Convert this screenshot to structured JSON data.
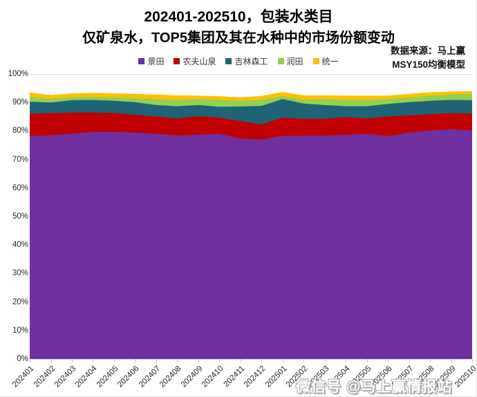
{
  "title": {
    "line1": "202401-202510，包装水类目",
    "line2": "仅矿泉水，TOP5集团及其在水种中的市场份额变动"
  },
  "source": {
    "line1": "数据来源：马上赢",
    "line2": "MSY150均衡模型"
  },
  "watermark": "微信号 @马上赢情报站",
  "chart_data": {
    "type": "area",
    "stacked": true,
    "unit": "%",
    "title": "202401-202510，包装水类目 仅矿泉水，TOP5集团及其在水种中的市场份额变动",
    "xlabel": "",
    "ylabel": "",
    "ylim": [
      0,
      100
    ],
    "yticks": [
      "0%",
      "10%",
      "20%",
      "30%",
      "40%",
      "50%",
      "60%",
      "70%",
      "80%",
      "90%",
      "100%"
    ],
    "grid": true,
    "legend_position": "top-center",
    "categories": [
      "202401",
      "202402",
      "202403",
      "202404",
      "202405",
      "202406",
      "202407",
      "202408",
      "202409",
      "202410",
      "202411",
      "202412",
      "202501",
      "202502",
      "202503",
      "202504",
      "202505",
      "202506",
      "202507",
      "202508",
      "202509",
      "202510"
    ],
    "series": [
      {
        "name": "景田",
        "color": "#7030A0",
        "values": [
          78.2,
          78.5,
          79.0,
          79.6,
          79.7,
          79.4,
          79.0,
          78.4,
          78.7,
          79.0,
          77.4,
          77.0,
          78.3,
          78.3,
          78.4,
          78.6,
          79.0,
          78.2,
          79.4,
          80.2,
          80.6,
          80.2
        ]
      },
      {
        "name": "农夫山泉",
        "color": "#C00000",
        "values": [
          7.9,
          7.8,
          7.5,
          6.9,
          6.6,
          6.3,
          6.1,
          6.0,
          6.5,
          5.7,
          6.1,
          5.3,
          6.4,
          6.0,
          5.9,
          6.3,
          5.4,
          6.9,
          6.1,
          5.7,
          5.7,
          5.9
        ]
      },
      {
        "name": "吉林森工",
        "color": "#1F6377",
        "values": [
          4.2,
          3.7,
          4.3,
          4.4,
          4.3,
          4.4,
          4.0,
          4.3,
          3.9,
          3.8,
          5.1,
          6.5,
          6.5,
          5.3,
          4.8,
          3.8,
          4.3,
          4.4,
          4.6,
          4.7,
          4.6,
          4.7
        ]
      },
      {
        "name": "润田",
        "color": "#92D050",
        "values": [
          1.7,
          1.3,
          1.0,
          1.1,
          1.2,
          1.5,
          2.1,
          2.2,
          2.1,
          2.4,
          2.0,
          2.2,
          1.0,
          1.4,
          2.1,
          2.2,
          2.2,
          1.7,
          1.6,
          1.8,
          1.9,
          2.2
        ]
      },
      {
        "name": "统一",
        "color": "#FFC000",
        "values": [
          1.5,
          1.3,
          1.4,
          1.4,
          1.4,
          1.4,
          1.6,
          1.6,
          1.2,
          1.3,
          1.2,
          1.3,
          1.5,
          1.5,
          1.3,
          1.5,
          1.5,
          1.2,
          1.3,
          1.2,
          1.0,
          1.0
        ]
      }
    ]
  }
}
